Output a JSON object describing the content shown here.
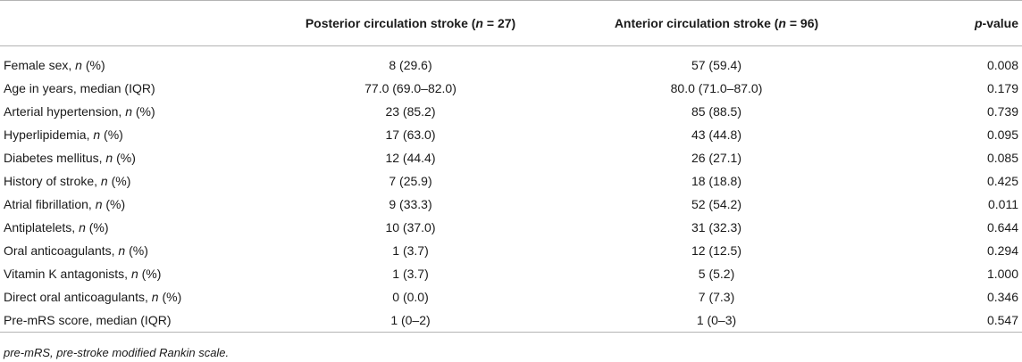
{
  "headers": [
    {
      "text": "",
      "italic_part": "",
      "tail": ""
    },
    {
      "text": "Posterior circulation stroke (",
      "italic_part": "n",
      "tail": " = 27)"
    },
    {
      "text": "Anterior circulation stroke (",
      "italic_part": "n",
      "tail": " = 96)"
    },
    {
      "text": "",
      "italic_part": "p",
      "tail": "-value"
    }
  ],
  "rows": [
    {
      "label": "Female sex, ",
      "label_italic": "n",
      "label_tail": " (%)",
      "posterior": "8 (29.6)",
      "anterior": "57 (59.4)",
      "p": "0.008"
    },
    {
      "label": "Age in years, median (IQR)",
      "label_italic": "",
      "label_tail": "",
      "posterior": "77.0 (69.0–82.0)",
      "anterior": "80.0 (71.0–87.0)",
      "p": "0.179"
    },
    {
      "label": "Arterial hypertension, ",
      "label_italic": "n",
      "label_tail": " (%)",
      "posterior": "23 (85.2)",
      "anterior": "85 (88.5)",
      "p": "0.739"
    },
    {
      "label": "Hyperlipidemia, ",
      "label_italic": "n",
      "label_tail": " (%)",
      "posterior": "17 (63.0)",
      "anterior": "43 (44.8)",
      "p": "0.095"
    },
    {
      "label": "Diabetes mellitus, ",
      "label_italic": "n",
      "label_tail": " (%)",
      "posterior": "12 (44.4)",
      "anterior": "26 (27.1)",
      "p": "0.085"
    },
    {
      "label": "History of stroke, ",
      "label_italic": "n",
      "label_tail": " (%)",
      "posterior": "7 (25.9)",
      "anterior": "18 (18.8)",
      "p": "0.425"
    },
    {
      "label": "Atrial fibrillation, ",
      "label_italic": "n",
      "label_tail": " (%)",
      "posterior": "9 (33.3)",
      "anterior": "52 (54.2)",
      "p": "0.011"
    },
    {
      "label": "Antiplatelets, ",
      "label_italic": "n",
      "label_tail": " (%)",
      "posterior": "10 (37.0)",
      "anterior": "31 (32.3)",
      "p": "0.644"
    },
    {
      "label": "Oral anticoagulants, ",
      "label_italic": "n",
      "label_tail": " (%)",
      "posterior": "1 (3.7)",
      "anterior": "12 (12.5)",
      "p": "0.294"
    },
    {
      "label": "Vitamin K antagonists, ",
      "label_italic": "n",
      "label_tail": " (%)",
      "posterior": "1 (3.7)",
      "anterior": "5 (5.2)",
      "p": "1.000"
    },
    {
      "label": "Direct oral anticoagulants, ",
      "label_italic": "n",
      "label_tail": " (%)",
      "posterior": "0 (0.0)",
      "anterior": "7 (7.3)",
      "p": "0.346"
    },
    {
      "label": "Pre-mRS score, median (IQR)",
      "label_italic": "",
      "label_tail": "",
      "posterior": "1 (0–2)",
      "anterior": "1 (0–3)",
      "p": "0.547"
    }
  ],
  "footnote": "pre-mRS, pre-stroke modified Rankin scale."
}
